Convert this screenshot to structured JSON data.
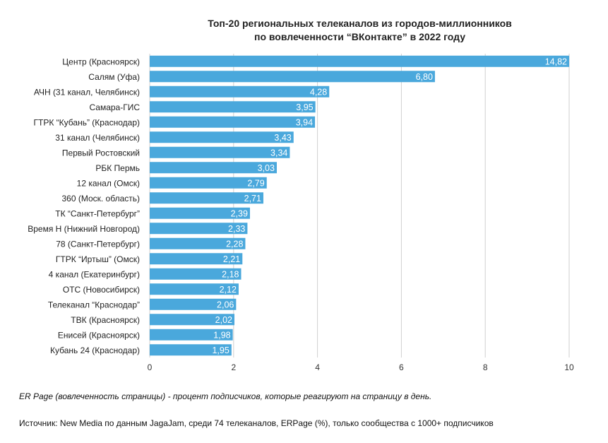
{
  "chart_data": {
    "type": "bar",
    "orientation": "horizontal",
    "title": [
      "Топ-20 региональных телеканалов из городов-миллионников",
      "по вовлеченности “ВКонтакте” в 2022 году"
    ],
    "categories": [
      "Центр (Красноярск)",
      "Салям (Уфа)",
      "АЧН (31 канал, Челябинск)",
      "Самара-ГИС",
      "ГТРК “Кубань” (Краснодар)",
      "31 канал (Челябинск)",
      "Первый Ростовский",
      "РБК Пермь",
      "12 канал (Омск)",
      "360 (Моск. область)",
      "ТК “Санкт-Петербург”",
      "Время Н (Нижний Новгород)",
      "78 (Санкт-Петербург)",
      "ГТРК “Иртыш” (Омск)",
      "4 канал (Екатеринбург)",
      "ОТС (Новосибирск)",
      "Телеканал “Краснодар”",
      "ТВК (Красноярск)",
      "Енисей (Красноярск)",
      "Кубань 24 (Краснодар)"
    ],
    "values": [
      14.82,
      6.8,
      4.28,
      3.95,
      3.94,
      3.43,
      3.34,
      3.03,
      2.79,
      2.71,
      2.39,
      2.33,
      2.28,
      2.21,
      2.18,
      2.12,
      2.06,
      2.02,
      1.98,
      1.95
    ],
    "value_labels": [
      "14,82",
      "6,80",
      "4,28",
      "3,95",
      "3,94",
      "3,43",
      "3,34",
      "3,03",
      "2,79",
      "2,71",
      "2,39",
      "2,33",
      "2,28",
      "2,21",
      "2,18",
      "2,12",
      "2,06",
      "2,02",
      "1,98",
      "1,95"
    ],
    "xlim": [
      0,
      10
    ],
    "xticks": [
      "0",
      "2",
      "4",
      "6",
      "8",
      "10"
    ],
    "bar_color": "#4aa8dc",
    "xlabel": "",
    "ylabel": ""
  },
  "footer": {
    "note": "ER Page (вовлеченность страницы) - процент подписчиков, которые реагируют на страницу в день.",
    "source": "Источник: New Media по данным JagaJam, среди 74 телеканалов, ERPage (%), только сообщества с 1000+ подписчиков"
  }
}
